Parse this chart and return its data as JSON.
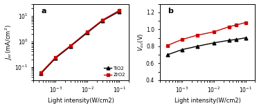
{
  "panel_a": {
    "tio2_x": [
      0.00035,
      0.001,
      0.003,
      0.01,
      0.03,
      0.1
    ],
    "tio2_y": [
      0.055,
      0.22,
      0.65,
      2.2,
      6.5,
      15.0
    ],
    "zro2_x": [
      0.00035,
      0.001,
      0.003,
      0.01,
      0.03,
      0.1
    ],
    "zro2_y": [
      0.06,
      0.24,
      0.7,
      2.4,
      7.0,
      16.5
    ],
    "xlabel": "Light intensity(W/cm2)",
    "ylabel": "Jsc(mA/cm2)",
    "xlim": [
      0.0002,
      0.2
    ],
    "ylim": [
      0.03,
      30
    ],
    "label_a": "a",
    "legend_tio2": "TiO2",
    "legend_zro2": "ZrO2"
  },
  "panel_b": {
    "tio2_x": [
      0.00035,
      0.001,
      0.003,
      0.01,
      0.03,
      0.05,
      0.1
    ],
    "tio2_y": [
      0.7,
      0.76,
      0.8,
      0.84,
      0.87,
      0.88,
      0.9
    ],
    "zro2_x": [
      0.00035,
      0.001,
      0.003,
      0.01,
      0.03,
      0.05,
      0.1
    ],
    "zro2_y": [
      0.81,
      0.88,
      0.93,
      0.97,
      1.03,
      1.05,
      1.08
    ],
    "xlabel": "Light intensity(W/cm2)",
    "ylabel": "Voc(V)",
    "xlim": [
      0.0002,
      0.2
    ],
    "ylim": [
      0.4,
      1.3
    ],
    "label_b": "b"
  },
  "tio2_color": "#000000",
  "zro2_color": "#cc0000",
  "tio2_marker": "^",
  "zro2_marker": "s",
  "linewidth": 1.0,
  "markersize": 3.5
}
